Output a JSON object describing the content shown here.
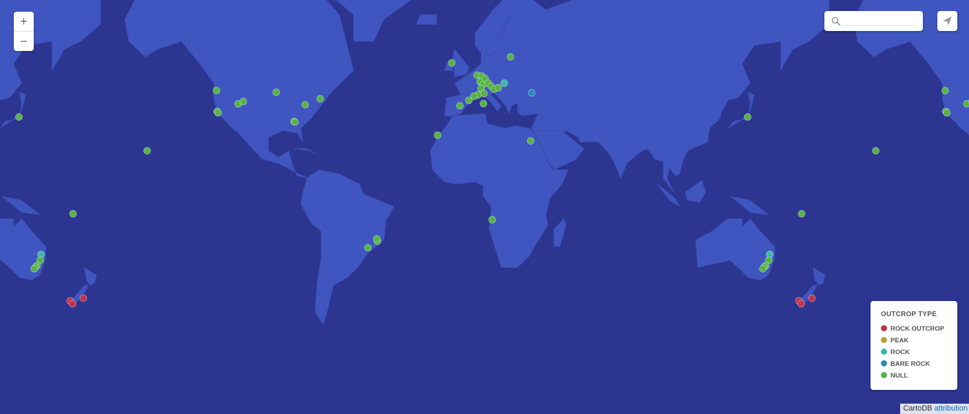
{
  "zoom": {
    "in_label": "+",
    "out_label": "−"
  },
  "search": {
    "placeholder": "",
    "icon": "search-icon"
  },
  "share": {
    "icon": "paper-plane-icon"
  },
  "legend": {
    "title": "OUTCROP TYPE",
    "items": [
      {
        "label": "ROCK OUTCROP",
        "color": "#c0334a"
      },
      {
        "label": "PEAK",
        "color": "#b5a23a"
      },
      {
        "label": "ROCK",
        "color": "#3cb7a8"
      },
      {
        "label": "BARE ROCK",
        "color": "#2e8ab8"
      },
      {
        "label": "NULL",
        "color": "#56b346"
      }
    ]
  },
  "attribution": {
    "brand": "CartoDB",
    "link": "attribution"
  },
  "colors": {
    "ocean": "#2c3590",
    "land": "#3f55bf"
  },
  "markers": [
    {
      "lng": -122.7,
      "lat": 45.5,
      "type": "NULL"
    },
    {
      "lng": -122.4,
      "lat": 37.8,
      "type": "NULL"
    },
    {
      "lng": -121.9,
      "lat": 37.3,
      "type": "NULL"
    },
    {
      "lng": -112.0,
      "lat": 40.7,
      "type": "NULL"
    },
    {
      "lng": -109.5,
      "lat": 41.6,
      "type": "NULL"
    },
    {
      "lng": -93.2,
      "lat": 44.9,
      "type": "NULL"
    },
    {
      "lng": -84.4,
      "lat": 33.8,
      "type": "NULL"
    },
    {
      "lng": -83.9,
      "lat": 33.6,
      "type": "NULL"
    },
    {
      "lng": -78.9,
      "lat": 40.4,
      "type": "NULL"
    },
    {
      "lng": -71.5,
      "lat": 42.6,
      "type": "NULL"
    },
    {
      "lng": -157.0,
      "lat": 21.0,
      "type": "NULL"
    },
    {
      "lng": 139.7,
      "lat": 35.6,
      "type": "NULL"
    },
    {
      "lng": -6.5,
      "lat": 54.3,
      "type": "NULL"
    },
    {
      "lng": 22.5,
      "lat": 56.0,
      "type": "NULL"
    },
    {
      "lng": 6.0,
      "lat": 50.6,
      "type": "NULL"
    },
    {
      "lng": 8.3,
      "lat": 50.3,
      "type": "NULL"
    },
    {
      "lng": 10.0,
      "lat": 49.5,
      "type": "NULL"
    },
    {
      "lng": 7.5,
      "lat": 48.5,
      "type": "NULL"
    },
    {
      "lng": 9.0,
      "lat": 47.5,
      "type": "NULL"
    },
    {
      "lng": 11.5,
      "lat": 48.0,
      "type": "NULL"
    },
    {
      "lng": 13.0,
      "lat": 47.0,
      "type": "NULL"
    },
    {
      "lng": 8.0,
      "lat": 46.2,
      "type": "NULL"
    },
    {
      "lng": 14.5,
      "lat": 46.0,
      "type": "NULL"
    },
    {
      "lng": 16.5,
      "lat": 46.5,
      "type": "NULL"
    },
    {
      "lng": 9.5,
      "lat": 44.5,
      "type": "NULL"
    },
    {
      "lng": 6.5,
      "lat": 44.0,
      "type": "NULL"
    },
    {
      "lng": 4.5,
      "lat": 43.5,
      "type": "NULL"
    },
    {
      "lng": 2.0,
      "lat": 42.0,
      "type": "NULL"
    },
    {
      "lng": -2.5,
      "lat": 40.0,
      "type": "NULL"
    },
    {
      "lng": 9.2,
      "lat": 40.8,
      "type": "NULL"
    },
    {
      "lng": 19.5,
      "lat": 48.0,
      "type": "ROCK"
    },
    {
      "lng": 33.0,
      "lat": 44.7,
      "type": "BARE ROCK"
    },
    {
      "lng": -13.5,
      "lat": 28.0,
      "type": "NULL"
    },
    {
      "lng": 32.5,
      "lat": 25.5,
      "type": "NULL"
    },
    {
      "lng": 13.5,
      "lat": -12.5,
      "type": "NULL"
    },
    {
      "lng": -43.2,
      "lat": -22.6,
      "type": "NULL"
    },
    {
      "lng": -43.5,
      "lat": -21.5,
      "type": "NULL"
    },
    {
      "lng": -47.9,
      "lat": -25.5,
      "type": "NULL"
    },
    {
      "lng": 150.6,
      "lat": -28.5,
      "type": "ROCK"
    },
    {
      "lng": 150.2,
      "lat": -31.0,
      "type": "NULL"
    },
    {
      "lng": 148.6,
      "lat": -33.2,
      "type": "NULL"
    },
    {
      "lng": 147.9,
      "lat": -33.8,
      "type": "NULL"
    },
    {
      "lng": 147.2,
      "lat": -34.5,
      "type": "NULL"
    },
    {
      "lng": 166.4,
      "lat": -9.6,
      "type": "NULL"
    },
    {
      "lng": 165.0,
      "lat": -46.5,
      "type": "ROCK OUTCROP"
    },
    {
      "lng": 166.2,
      "lat": -47.5,
      "type": "ROCK OUTCROP"
    },
    {
      "lng": 171.5,
      "lat": -45.6,
      "type": "ROCK OUTCROP"
    }
  ]
}
